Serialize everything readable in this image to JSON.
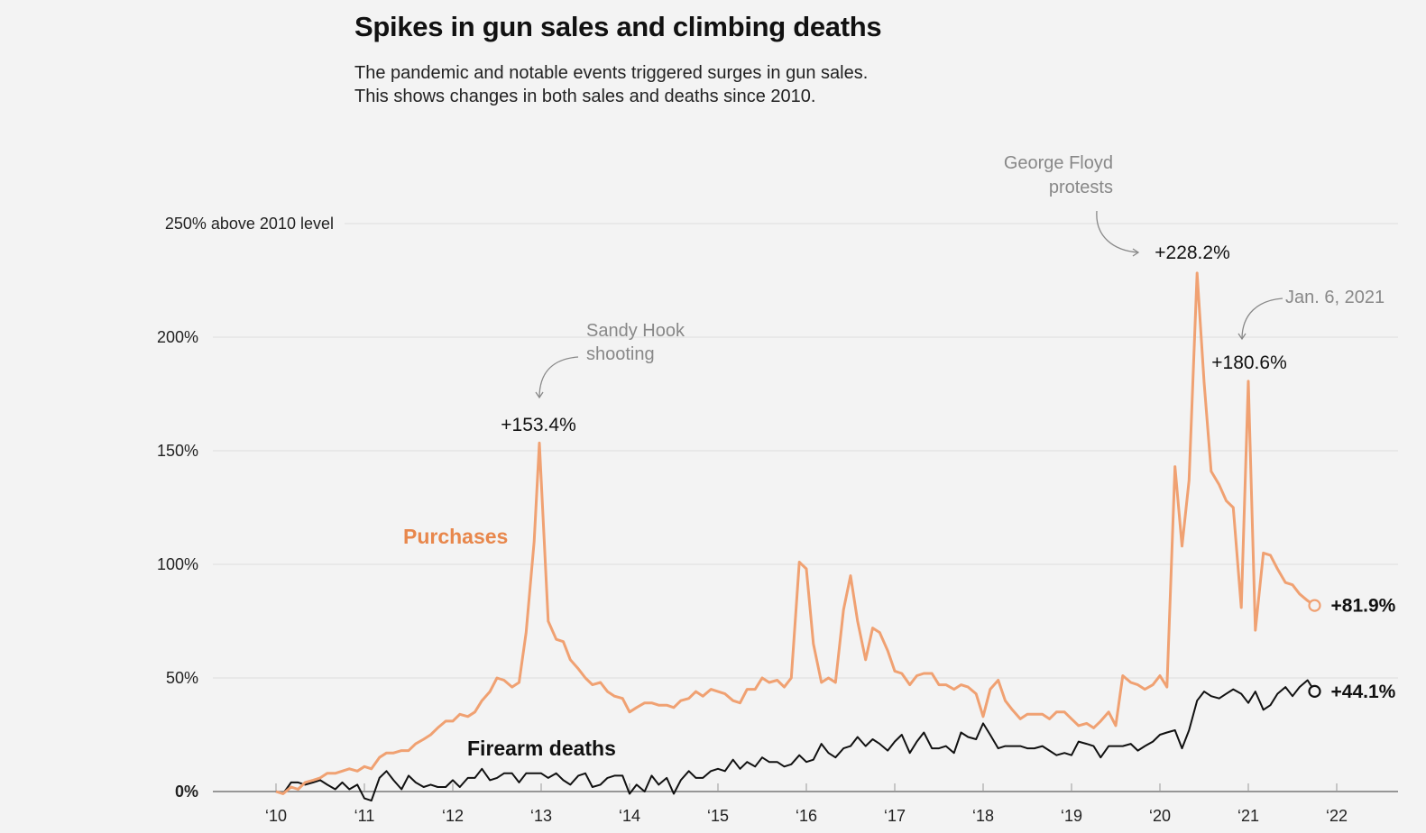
{
  "chart_data": {
    "type": "line",
    "title": "Spikes in gun sales and climbing deaths",
    "subtitle": [
      "The pandemic and notable events triggered surges in gun sales.",
      "This shows changes in both sales and deaths since 2010."
    ],
    "xlabel": "",
    "ylabel": "",
    "xlim": [
      2009.75,
      2022.5
    ],
    "ylim": [
      0,
      250
    ],
    "y_ticks": [
      {
        "value": 250,
        "label": "250% above 2010 level"
      },
      {
        "value": 200,
        "label": "200%"
      },
      {
        "value": 150,
        "label": "150%"
      },
      {
        "value": 100,
        "label": "100%"
      },
      {
        "value": 50,
        "label": "50%"
      },
      {
        "value": 0,
        "label": "0%"
      }
    ],
    "x_ticks": [
      {
        "value": 2010,
        "label": "‘10"
      },
      {
        "value": 2011,
        "label": "‘11"
      },
      {
        "value": 2012,
        "label": "‘12"
      },
      {
        "value": 2013,
        "label": "‘13"
      },
      {
        "value": 2014,
        "label": "‘14"
      },
      {
        "value": 2015,
        "label": "‘15"
      },
      {
        "value": 2016,
        "label": "‘16"
      },
      {
        "value": 2017,
        "label": "‘17"
      },
      {
        "value": 2018,
        "label": "‘18"
      },
      {
        "value": 2019,
        "label": "‘19"
      },
      {
        "value": 2020,
        "label": "‘20"
      },
      {
        "value": 2021,
        "label": "‘21"
      },
      {
        "value": 2022,
        "label": "‘22"
      }
    ],
    "grid": true,
    "series": [
      {
        "name": "Purchases",
        "color": "#f0a172",
        "label_color": "#e8874c",
        "end_label": "+81.9%",
        "points": [
          [
            2010.0,
            0
          ],
          [
            2010.08,
            -1
          ],
          [
            2010.17,
            2
          ],
          [
            2010.25,
            1
          ],
          [
            2010.33,
            4
          ],
          [
            2010.42,
            5
          ],
          [
            2010.5,
            6
          ],
          [
            2010.58,
            8
          ],
          [
            2010.67,
            8
          ],
          [
            2010.75,
            9
          ],
          [
            2010.83,
            10
          ],
          [
            2010.92,
            9
          ],
          [
            2011.0,
            11
          ],
          [
            2011.08,
            10
          ],
          [
            2011.17,
            15
          ],
          [
            2011.25,
            17
          ],
          [
            2011.33,
            17
          ],
          [
            2011.42,
            18
          ],
          [
            2011.5,
            18
          ],
          [
            2011.58,
            21
          ],
          [
            2011.67,
            23
          ],
          [
            2011.75,
            25
          ],
          [
            2011.83,
            28
          ],
          [
            2011.92,
            31
          ],
          [
            2012.0,
            31
          ],
          [
            2012.08,
            34
          ],
          [
            2012.17,
            33
          ],
          [
            2012.25,
            35
          ],
          [
            2012.33,
            40
          ],
          [
            2012.42,
            44
          ],
          [
            2012.5,
            50
          ],
          [
            2012.58,
            49
          ],
          [
            2012.67,
            46
          ],
          [
            2012.75,
            48
          ],
          [
            2012.83,
            70
          ],
          [
            2012.92,
            110
          ],
          [
            2012.98,
            153.4
          ],
          [
            2013.08,
            75
          ],
          [
            2013.17,
            67
          ],
          [
            2013.25,
            66
          ],
          [
            2013.33,
            58
          ],
          [
            2013.42,
            54
          ],
          [
            2013.5,
            50
          ],
          [
            2013.58,
            47
          ],
          [
            2013.67,
            48
          ],
          [
            2013.75,
            44
          ],
          [
            2013.83,
            42
          ],
          [
            2013.92,
            41
          ],
          [
            2014.0,
            35
          ],
          [
            2014.08,
            37
          ],
          [
            2014.17,
            39
          ],
          [
            2014.25,
            39
          ],
          [
            2014.33,
            38
          ],
          [
            2014.42,
            38
          ],
          [
            2014.5,
            37
          ],
          [
            2014.58,
            40
          ],
          [
            2014.67,
            41
          ],
          [
            2014.75,
            44
          ],
          [
            2014.83,
            42
          ],
          [
            2014.92,
            45
          ],
          [
            2015.0,
            44
          ],
          [
            2015.08,
            43
          ],
          [
            2015.17,
            40
          ],
          [
            2015.25,
            39
          ],
          [
            2015.33,
            45
          ],
          [
            2015.42,
            45
          ],
          [
            2015.5,
            50
          ],
          [
            2015.58,
            48
          ],
          [
            2015.67,
            49
          ],
          [
            2015.75,
            46
          ],
          [
            2015.83,
            50
          ],
          [
            2015.92,
            101
          ],
          [
            2016.0,
            98
          ],
          [
            2016.08,
            65
          ],
          [
            2016.17,
            48
          ],
          [
            2016.25,
            50
          ],
          [
            2016.33,
            48
          ],
          [
            2016.42,
            80
          ],
          [
            2016.5,
            95
          ],
          [
            2016.58,
            75
          ],
          [
            2016.67,
            58
          ],
          [
            2016.75,
            72
          ],
          [
            2016.83,
            70
          ],
          [
            2016.92,
            62
          ],
          [
            2017.0,
            53
          ],
          [
            2017.08,
            52
          ],
          [
            2017.17,
            47
          ],
          [
            2017.25,
            51
          ],
          [
            2017.33,
            52
          ],
          [
            2017.42,
            52
          ],
          [
            2017.5,
            47
          ],
          [
            2017.58,
            47
          ],
          [
            2017.67,
            45
          ],
          [
            2017.75,
            47
          ],
          [
            2017.83,
            46
          ],
          [
            2017.92,
            43
          ],
          [
            2018.0,
            33
          ],
          [
            2018.08,
            45
          ],
          [
            2018.17,
            49
          ],
          [
            2018.25,
            40
          ],
          [
            2018.33,
            36
          ],
          [
            2018.42,
            32
          ],
          [
            2018.5,
            34
          ],
          [
            2018.58,
            34
          ],
          [
            2018.67,
            34
          ],
          [
            2018.75,
            32
          ],
          [
            2018.83,
            35
          ],
          [
            2018.92,
            35
          ],
          [
            2019.0,
            32
          ],
          [
            2019.08,
            29
          ],
          [
            2019.17,
            30
          ],
          [
            2019.25,
            28
          ],
          [
            2019.33,
            31
          ],
          [
            2019.42,
            35
          ],
          [
            2019.5,
            29
          ],
          [
            2019.58,
            51
          ],
          [
            2019.67,
            48
          ],
          [
            2019.75,
            47
          ],
          [
            2019.83,
            45
          ],
          [
            2019.92,
            47
          ],
          [
            2020.0,
            51
          ],
          [
            2020.08,
            46
          ],
          [
            2020.17,
            143
          ],
          [
            2020.25,
            108
          ],
          [
            2020.33,
            137
          ],
          [
            2020.42,
            228.2
          ],
          [
            2020.5,
            180
          ],
          [
            2020.58,
            141
          ],
          [
            2020.67,
            135
          ],
          [
            2020.75,
            128
          ],
          [
            2020.83,
            125
          ],
          [
            2020.92,
            81
          ],
          [
            2021.0,
            180.6
          ],
          [
            2021.08,
            71
          ],
          [
            2021.17,
            105
          ],
          [
            2021.25,
            104
          ],
          [
            2021.33,
            98
          ],
          [
            2021.42,
            92
          ],
          [
            2021.5,
            91
          ],
          [
            2021.58,
            87
          ],
          [
            2021.67,
            84
          ],
          [
            2021.75,
            81.9
          ]
        ]
      },
      {
        "name": "Firearm deaths",
        "color": "#111111",
        "label_color": "#111111",
        "end_label": "+44.1%",
        "points": [
          [
            2010.0,
            0
          ],
          [
            2010.08,
            -1
          ],
          [
            2010.17,
            4
          ],
          [
            2010.25,
            4
          ],
          [
            2010.33,
            3
          ],
          [
            2010.42,
            4
          ],
          [
            2010.5,
            5
          ],
          [
            2010.58,
            3
          ],
          [
            2010.67,
            1
          ],
          [
            2010.75,
            4
          ],
          [
            2010.83,
            1
          ],
          [
            2010.92,
            3
          ],
          [
            2011.0,
            -3
          ],
          [
            2011.08,
            -4
          ],
          [
            2011.17,
            6
          ],
          [
            2011.25,
            9
          ],
          [
            2011.33,
            5
          ],
          [
            2011.42,
            1
          ],
          [
            2011.5,
            7
          ],
          [
            2011.58,
            4
          ],
          [
            2011.67,
            2
          ],
          [
            2011.75,
            3
          ],
          [
            2011.83,
            2
          ],
          [
            2011.92,
            2
          ],
          [
            2012.0,
            5
          ],
          [
            2012.08,
            2
          ],
          [
            2012.17,
            6
          ],
          [
            2012.25,
            6
          ],
          [
            2012.33,
            10
          ],
          [
            2012.42,
            5
          ],
          [
            2012.5,
            6
          ],
          [
            2012.58,
            8
          ],
          [
            2012.67,
            8
          ],
          [
            2012.75,
            4
          ],
          [
            2012.83,
            8
          ],
          [
            2012.92,
            8
          ],
          [
            2013.0,
            8
          ],
          [
            2013.08,
            6
          ],
          [
            2013.17,
            8
          ],
          [
            2013.25,
            5
          ],
          [
            2013.33,
            3
          ],
          [
            2013.42,
            7
          ],
          [
            2013.5,
            8
          ],
          [
            2013.58,
            2
          ],
          [
            2013.67,
            3
          ],
          [
            2013.75,
            6
          ],
          [
            2013.83,
            7
          ],
          [
            2013.92,
            7
          ],
          [
            2014.0,
            -1
          ],
          [
            2014.08,
            3
          ],
          [
            2014.17,
            0
          ],
          [
            2014.25,
            7
          ],
          [
            2014.33,
            3
          ],
          [
            2014.42,
            6
          ],
          [
            2014.5,
            -1
          ],
          [
            2014.58,
            5
          ],
          [
            2014.67,
            9
          ],
          [
            2014.75,
            6
          ],
          [
            2014.83,
            6
          ],
          [
            2014.92,
            9
          ],
          [
            2015.0,
            10
          ],
          [
            2015.08,
            9
          ],
          [
            2015.17,
            14
          ],
          [
            2015.25,
            10
          ],
          [
            2015.33,
            13
          ],
          [
            2015.42,
            11
          ],
          [
            2015.5,
            15
          ],
          [
            2015.58,
            13
          ],
          [
            2015.67,
            13
          ],
          [
            2015.75,
            11
          ],
          [
            2015.83,
            12
          ],
          [
            2015.92,
            16
          ],
          [
            2016.0,
            13
          ],
          [
            2016.08,
            14
          ],
          [
            2016.17,
            21
          ],
          [
            2016.25,
            17
          ],
          [
            2016.33,
            15
          ],
          [
            2016.42,
            19
          ],
          [
            2016.5,
            20
          ],
          [
            2016.58,
            24
          ],
          [
            2016.67,
            20
          ],
          [
            2016.75,
            23
          ],
          [
            2016.83,
            21
          ],
          [
            2016.92,
            18
          ],
          [
            2017.0,
            22
          ],
          [
            2017.08,
            25
          ],
          [
            2017.17,
            17
          ],
          [
            2017.25,
            22
          ],
          [
            2017.33,
            26
          ],
          [
            2017.42,
            19
          ],
          [
            2017.5,
            19
          ],
          [
            2017.58,
            20
          ],
          [
            2017.67,
            17
          ],
          [
            2017.75,
            26
          ],
          [
            2017.83,
            24
          ],
          [
            2017.92,
            23
          ],
          [
            2018.0,
            30
          ],
          [
            2018.08,
            25
          ],
          [
            2018.17,
            19
          ],
          [
            2018.25,
            20
          ],
          [
            2018.33,
            20
          ],
          [
            2018.42,
            20
          ],
          [
            2018.5,
            19
          ],
          [
            2018.58,
            19
          ],
          [
            2018.67,
            20
          ],
          [
            2018.75,
            18
          ],
          [
            2018.83,
            16
          ],
          [
            2018.92,
            17
          ],
          [
            2019.0,
            16
          ],
          [
            2019.08,
            22
          ],
          [
            2019.17,
            21
          ],
          [
            2019.25,
            20
          ],
          [
            2019.33,
            15
          ],
          [
            2019.42,
            20
          ],
          [
            2019.5,
            20
          ],
          [
            2019.58,
            20
          ],
          [
            2019.67,
            21
          ],
          [
            2019.75,
            18
          ],
          [
            2019.83,
            20
          ],
          [
            2019.92,
            22
          ],
          [
            2020.0,
            25
          ],
          [
            2020.08,
            26
          ],
          [
            2020.17,
            27
          ],
          [
            2020.25,
            19
          ],
          [
            2020.33,
            27
          ],
          [
            2020.42,
            40
          ],
          [
            2020.5,
            44
          ],
          [
            2020.58,
            42
          ],
          [
            2020.67,
            41
          ],
          [
            2020.75,
            43
          ],
          [
            2020.83,
            45
          ],
          [
            2020.92,
            43
          ],
          [
            2021.0,
            39
          ],
          [
            2021.08,
            44
          ],
          [
            2021.17,
            36
          ],
          [
            2021.25,
            38
          ],
          [
            2021.33,
            43
          ],
          [
            2021.42,
            46
          ],
          [
            2021.5,
            42
          ],
          [
            2021.58,
            46
          ],
          [
            2021.67,
            49
          ],
          [
            2021.75,
            44.1
          ]
        ]
      }
    ],
    "annotations": [
      {
        "id": "sandy-hook",
        "lines": [
          "Sandy Hook",
          "shooting"
        ]
      },
      {
        "id": "george-floyd",
        "lines": [
          "George Floyd",
          "protests"
        ]
      },
      {
        "id": "jan-6",
        "lines": [
          "Jan. 6, 2021"
        ]
      }
    ],
    "peak_labels": [
      {
        "id": "peak-2013",
        "label": "+153.4%",
        "x": 2012.98,
        "y": 153.4
      },
      {
        "id": "peak-2020",
        "label": "+228.2%",
        "x": 2020.42,
        "y": 228.2
      },
      {
        "id": "peak-2021",
        "label": "+180.6%",
        "x": 2021.0,
        "y": 180.6
      }
    ]
  }
}
